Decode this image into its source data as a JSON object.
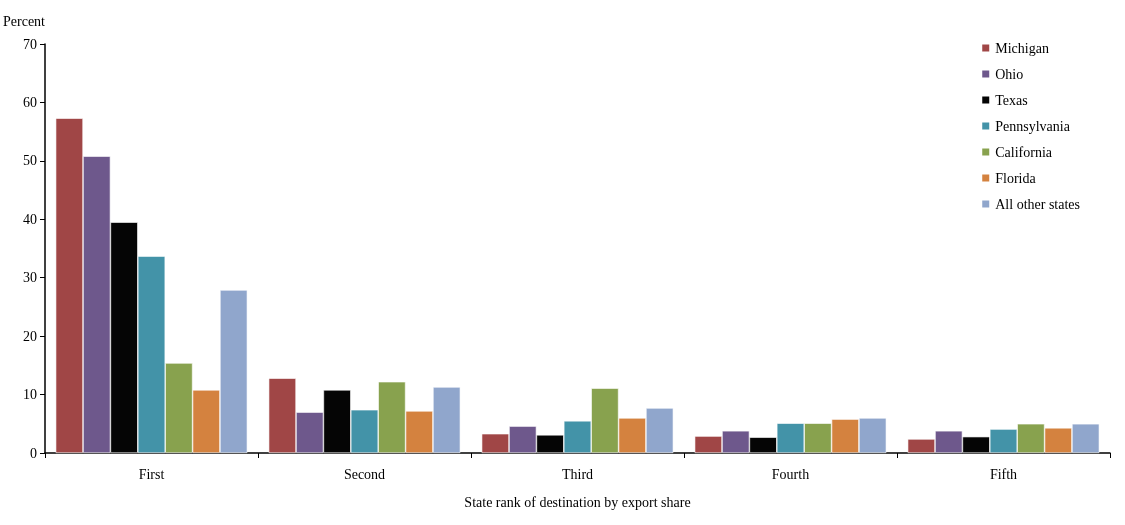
{
  "chart_data": {
    "type": "bar",
    "ylabel": "Percent",
    "xlabel": "State rank of destination by export share",
    "categories": [
      "First",
      "Second",
      "Third",
      "Fourth",
      "Fifth"
    ],
    "series": [
      {
        "name": "Michigan",
        "color": "#a04646",
        "values": [
          57.3,
          12.8,
          3.3,
          2.9,
          2.4
        ]
      },
      {
        "name": "Ohio",
        "color": "#6e588c",
        "values": [
          50.8,
          7.0,
          4.6,
          3.8,
          3.8
        ]
      },
      {
        "name": "Texas",
        "color": "#050505",
        "values": [
          39.5,
          10.8,
          3.1,
          2.7,
          2.8
        ]
      },
      {
        "name": "Pennsylvania",
        "color": "#4393a8",
        "values": [
          33.7,
          7.4,
          5.5,
          5.1,
          4.1
        ]
      },
      {
        "name": "California",
        "color": "#88a24e",
        "values": [
          15.4,
          12.2,
          11.1,
          5.1,
          5.0
        ]
      },
      {
        "name": "Florida",
        "color": "#d4823f",
        "values": [
          10.8,
          7.2,
          6.0,
          5.8,
          4.3
        ]
      },
      {
        "name": "All other states",
        "color": "#90a6cc",
        "values": [
          27.9,
          11.3,
          7.7,
          6.0,
          5.0
        ]
      }
    ],
    "ylim": [
      0,
      70
    ],
    "yticks": [
      0,
      10,
      20,
      30,
      40,
      50,
      60,
      70
    ],
    "grid": false,
    "legend": "top right"
  }
}
